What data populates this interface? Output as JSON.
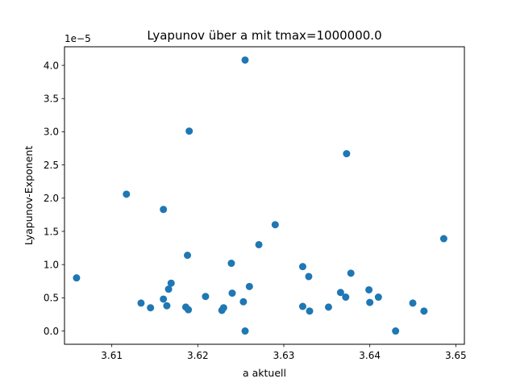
{
  "chart_data": {
    "type": "scatter",
    "title": "Lyapunov über a mit tmax=1000000.0",
    "xlabel": "a aktuell",
    "ylabel": "Lyapunov-Exponent",
    "y_offset_label": "1e−5",
    "xlim": [
      3.6045,
      3.651
    ],
    "ylim": [
      -0.2,
      4.28
    ],
    "xticks": [
      3.61,
      3.62,
      3.63,
      3.64,
      3.65
    ],
    "xtick_labels": [
      "3.61",
      "3.62",
      "3.63",
      "3.64",
      "3.65"
    ],
    "yticks": [
      0.0,
      0.5,
      1.0,
      1.5,
      2.0,
      2.5,
      3.0,
      3.5,
      4.0
    ],
    "ytick_labels": [
      "0.0",
      "0.5",
      "1.0",
      "1.5",
      "2.0",
      "2.5",
      "3.0",
      "3.5",
      "4.0"
    ],
    "grid": false,
    "marker_color": "#1f77b4",
    "points": [
      {
        "x": 3.6059,
        "y": 0.8
      },
      {
        "x": 3.6117,
        "y": 2.06
      },
      {
        "x": 3.6134,
        "y": 0.42
      },
      {
        "x": 3.6145,
        "y": 0.35
      },
      {
        "x": 3.616,
        "y": 0.48
      },
      {
        "x": 3.616,
        "y": 1.83
      },
      {
        "x": 3.6164,
        "y": 0.38
      },
      {
        "x": 3.6166,
        "y": 0.63
      },
      {
        "x": 3.6169,
        "y": 0.72
      },
      {
        "x": 3.6186,
        "y": 0.36
      },
      {
        "x": 3.6188,
        "y": 1.14
      },
      {
        "x": 3.6189,
        "y": 0.32
      },
      {
        "x": 3.619,
        "y": 3.01
      },
      {
        "x": 3.6209,
        "y": 0.52
      },
      {
        "x": 3.6228,
        "y": 0.31
      },
      {
        "x": 3.623,
        "y": 0.35
      },
      {
        "x": 3.6239,
        "y": 1.02
      },
      {
        "x": 3.624,
        "y": 0.57
      },
      {
        "x": 3.6253,
        "y": 0.44
      },
      {
        "x": 3.6255,
        "y": 4.08
      },
      {
        "x": 3.6255,
        "y": 0.0
      },
      {
        "x": 3.626,
        "y": 0.67
      },
      {
        "x": 3.6271,
        "y": 1.3
      },
      {
        "x": 3.629,
        "y": 1.6
      },
      {
        "x": 3.6322,
        "y": 0.97
      },
      {
        "x": 3.6322,
        "y": 0.37
      },
      {
        "x": 3.6329,
        "y": 0.82
      },
      {
        "x": 3.633,
        "y": 0.3
      },
      {
        "x": 3.6352,
        "y": 0.36
      },
      {
        "x": 3.6366,
        "y": 0.58
      },
      {
        "x": 3.6372,
        "y": 0.51
      },
      {
        "x": 3.6373,
        "y": 2.67
      },
      {
        "x": 3.6378,
        "y": 0.87
      },
      {
        "x": 3.6399,
        "y": 0.62
      },
      {
        "x": 3.64,
        "y": 0.43
      },
      {
        "x": 3.641,
        "y": 0.51
      },
      {
        "x": 3.643,
        "y": 0.0
      },
      {
        "x": 3.645,
        "y": 0.42
      },
      {
        "x": 3.6463,
        "y": 0.3
      },
      {
        "x": 3.6486,
        "y": 1.39
      }
    ]
  }
}
